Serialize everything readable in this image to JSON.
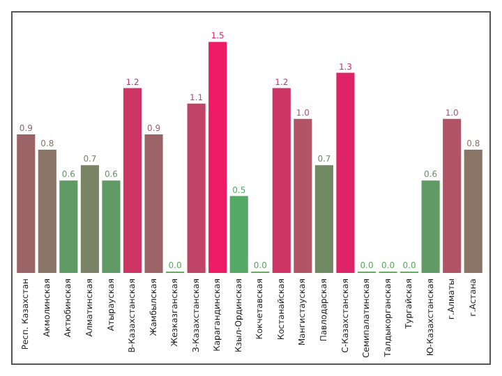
{
  "chart_data": {
    "type": "bar",
    "categories": [
      "Респ. Казахстан",
      "Акмолинская",
      "Актюбинская",
      "Алматинская",
      "Атырауская",
      "В-Казахстанская",
      "Жамбылская",
      "Жезказганская",
      "З-Казахстанская",
      "Карагандинская",
      "Кзыл-Ординская",
      "Кокчетавская",
      "Костанайская",
      "Мангистауская",
      "Павлодарская",
      "С-Казахстанская",
      "Семипалатинская",
      "Талдыкорганская",
      "Тургайская",
      "Ю-Казахстанская",
      "г.Алматы",
      "г.Астана"
    ],
    "values": [
      0.9,
      0.8,
      0.6,
      0.7,
      0.6,
      1.2,
      0.9,
      0.0,
      1.1,
      1.5,
      0.5,
      0.0,
      1.2,
      1.0,
      0.7,
      1.3,
      0.0,
      0.0,
      0.0,
      0.6,
      1.0,
      0.8
    ],
    "colors": [
      "#9a6466",
      "#8a7466",
      "#609a64",
      "#7a8464",
      "#609a64",
      "#cc3466",
      "#9a6466",
      "#55aa55",
      "#c04466",
      "#ee1a66",
      "#55a866",
      "#55aa55",
      "#cc3466",
      "#b05466",
      "#708a64",
      "#dd2466",
      "#55aa55",
      "#55aa55",
      "#55aa55",
      "#609a64",
      "#b05466",
      "#8a7466"
    ],
    "value_labels": [
      "0.9",
      "0.8",
      "0.6",
      "0.7",
      "0.6",
      "1.2",
      "0.9",
      "0.0",
      "1.1",
      "1.5",
      "0.5",
      "0.0",
      "1.2",
      "1.0",
      "0.7",
      "1.3",
      "0.0",
      "0.0",
      "0.0",
      "0.6",
      "1.0",
      "0.8"
    ],
    "grid": false,
    "legend": false
  }
}
